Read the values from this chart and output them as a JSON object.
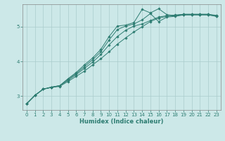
{
  "xlabel": "Humidex (Indice chaleur)",
  "background_color": "#cce8e8",
  "grid_color": "#aacccc",
  "line_color": "#2e7d72",
  "xlim": [
    -0.5,
    23.5
  ],
  "ylim": [
    2.6,
    5.65
  ],
  "yticks": [
    3,
    4,
    5
  ],
  "xticks": [
    0,
    1,
    2,
    3,
    4,
    5,
    6,
    7,
    8,
    9,
    10,
    11,
    12,
    13,
    14,
    15,
    16,
    17,
    18,
    19,
    20,
    21,
    22,
    23
  ],
  "line1_x": [
    0,
    1,
    2,
    3,
    4,
    5,
    6,
    7,
    8,
    9,
    10,
    11,
    12,
    13,
    14,
    15,
    16,
    17,
    18,
    19,
    20,
    21,
    22,
    23
  ],
  "line1_y": [
    2.78,
    3.02,
    3.2,
    3.25,
    3.28,
    3.42,
    3.57,
    3.72,
    3.9,
    4.08,
    4.28,
    4.5,
    4.68,
    4.85,
    5.0,
    5.15,
    5.25,
    5.3,
    5.32,
    5.35,
    5.35,
    5.35,
    5.35,
    5.32
  ],
  "line2_x": [
    0,
    1,
    2,
    3,
    4,
    5,
    6,
    7,
    8,
    9,
    10,
    11,
    12,
    13,
    14,
    15,
    16,
    17,
    18,
    19,
    20,
    21,
    22,
    23
  ],
  "line2_y": [
    2.78,
    3.02,
    3.2,
    3.25,
    3.3,
    3.45,
    3.62,
    3.8,
    3.98,
    4.2,
    4.48,
    4.72,
    4.9,
    5.02,
    5.08,
    5.18,
    5.28,
    5.32,
    5.34,
    5.36,
    5.36,
    5.36,
    5.36,
    5.33
  ],
  "line3_x": [
    0,
    1,
    2,
    3,
    4,
    5,
    6,
    7,
    8,
    9,
    10,
    11,
    12,
    13,
    14,
    15,
    16,
    17,
    18,
    19,
    20,
    21,
    22,
    23
  ],
  "line3_y": [
    2.78,
    3.02,
    3.2,
    3.26,
    3.3,
    3.48,
    3.65,
    3.85,
    4.05,
    4.28,
    4.62,
    4.92,
    5.02,
    5.08,
    5.2,
    5.38,
    5.15,
    5.28,
    5.3,
    5.34,
    5.34,
    5.34,
    5.34,
    5.3
  ],
  "line4_x": [
    0,
    1,
    2,
    3,
    4,
    5,
    6,
    7,
    8,
    9,
    10,
    11,
    12,
    13,
    14,
    15,
    16,
    17,
    18,
    19,
    20,
    21,
    22,
    23
  ],
  "line4_y": [
    2.78,
    3.02,
    3.2,
    3.26,
    3.3,
    3.5,
    3.68,
    3.9,
    4.1,
    4.35,
    4.72,
    5.02,
    5.05,
    5.12,
    5.5,
    5.4,
    5.52,
    5.35,
    5.32,
    5.36,
    5.36,
    5.36,
    5.36,
    5.3
  ]
}
